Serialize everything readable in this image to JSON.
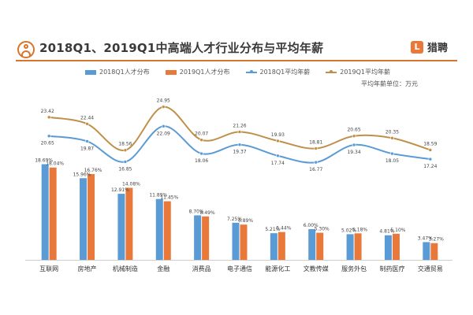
{
  "header": {
    "title": "2018Q1、2019Q1中高端人才行业分布与平均年薪",
    "brand": "猎聘"
  },
  "unit_note": "平均年薪单位：万元",
  "colors": {
    "bar2018": "#5b9bd5",
    "bar2019": "#e8793a",
    "line2018": "#5b9bd5",
    "line2019": "#c0904a",
    "accent": "#d8742c"
  },
  "chart_data": {
    "type": "bar",
    "title": "2018Q1、2019Q1中高端人才行业分布与平均年薪",
    "categories": [
      "互联网",
      "房地产",
      "机械制造",
      "金融",
      "消费品",
      "电子通信",
      "能源化工",
      "文教传媒",
      "服务外包",
      "制药医疗",
      "交通贸易"
    ],
    "series": [
      {
        "name": "2018Q1人才分布",
        "kind": "bar",
        "values": [
          18.69,
          15.96,
          12.91,
          11.89,
          8.7,
          7.25,
          5.21,
          6.0,
          5.02,
          4.81,
          3.47
        ],
        "labels": [
          "18.69%",
          "15.96%",
          "12.91%",
          "11.89%",
          "8.70%",
          "7.25%",
          "5.21%",
          "6.00%",
          "5.02%",
          "4.81%",
          "3.47%"
        ]
      },
      {
        "name": "2019Q1人才分布",
        "kind": "bar",
        "values": [
          18.04,
          16.76,
          14.08,
          11.45,
          8.49,
          6.89,
          5.44,
          5.3,
          5.18,
          5.1,
          3.27
        ],
        "labels": [
          "18.04%",
          "16.76%",
          "14.08%",
          "11.45%",
          "8.49%",
          "6.89%",
          "5.44%",
          "5.30%",
          "5.18%",
          "5.10%",
          "3.27%"
        ]
      },
      {
        "name": "2018Q1平均年薪",
        "kind": "line",
        "values": [
          20.65,
          19.87,
          16.85,
          22.09,
          18.06,
          19.37,
          17.74,
          16.77,
          19.34,
          18.05,
          17.24
        ],
        "labels": [
          "20.65",
          "19.87",
          "16.85",
          "22.09",
          "18.06",
          "19.37",
          "17.74",
          "16.77",
          "19.34",
          "18.05",
          "17.24"
        ]
      },
      {
        "name": "2019Q1平均年薪",
        "kind": "line",
        "values": [
          23.42,
          22.44,
          18.56,
          24.95,
          20.07,
          21.26,
          19.93,
          18.81,
          20.65,
          20.35,
          18.59
        ],
        "labels": [
          "23.42",
          "22.44",
          "18.56",
          "24.95",
          "20.07",
          "21.26",
          "19.93",
          "18.81",
          "20.65",
          "20.35",
          "18.59"
        ]
      }
    ],
    "bar_ylim": [
      0,
      20
    ],
    "line_ylim": [
      14,
      27
    ],
    "grid": false,
    "legend": "top"
  }
}
